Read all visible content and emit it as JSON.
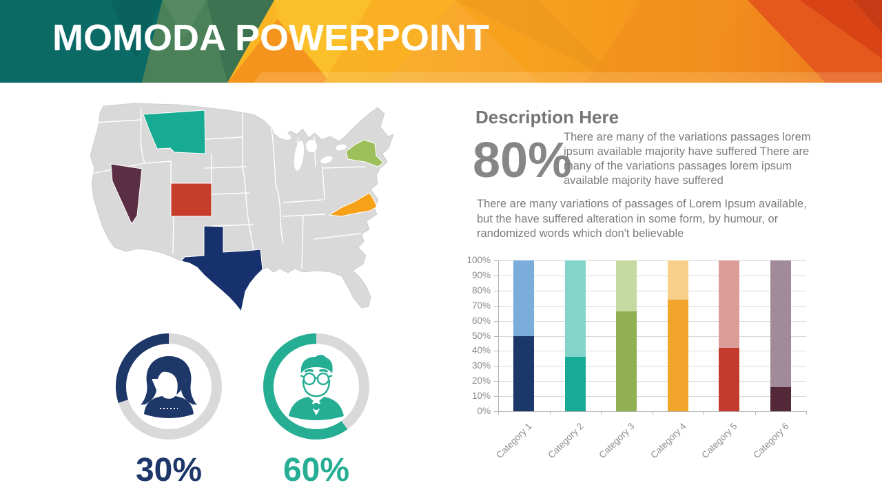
{
  "slide": {
    "title": "MOMODA POWERPOINT",
    "background_color": "#ffffff",
    "header_colors": {
      "teal": "#0b6a66",
      "green": "#4a8159",
      "dark_green": "#3d7350",
      "orange": "#f79d1e",
      "yellow": "#fbc02d",
      "red": "#e55a1c",
      "dark_red": "#c63b16"
    }
  },
  "description": {
    "heading": "Description Here",
    "stat_value": "80%",
    "stat_text": "There are many of the variations passages lorem ipsum available majority have suffered There are many of the variations passages lorem ipsum available majority have suffered",
    "body_text": "There are many variations of passages  of Lorem Ipsum available, but the have suffered alteration in some  form, by humour, or randomized words which  don't believable"
  },
  "donuts": [
    {
      "label": "30%",
      "value": 30,
      "color": "#1e3769",
      "ring_color": "#d9d9d9",
      "icon": "female-avatar"
    },
    {
      "label": "60%",
      "value": 60,
      "color": "#26ae94",
      "ring_color": "#d9d9d9",
      "icon": "male-avatar"
    }
  ],
  "map": {
    "base_color": "#d9d9d9",
    "border_color": "#ffffff",
    "highlighted_states": [
      {
        "name": "Montana",
        "color": "#18ab93"
      },
      {
        "name": "Nevada",
        "color": "#5a2e43"
      },
      {
        "name": "Colorado",
        "color": "#c63d2c"
      },
      {
        "name": "Texas",
        "color": "#16316b"
      },
      {
        "name": "New York",
        "color": "#9dc05b"
      },
      {
        "name": "Virginia",
        "color": "#f7a119"
      }
    ]
  },
  "chart_data": {
    "type": "bar",
    "stacked": true,
    "categories": [
      "Category 1",
      "Category 2",
      "Category 3",
      "Category 4",
      "Category 5",
      "Category 6"
    ],
    "series": [
      {
        "name": "filled",
        "values": [
          50,
          36,
          66,
          74,
          42,
          16
        ],
        "colors": [
          "#1c386b",
          "#17ab97",
          "#90b052",
          "#f2a52b",
          "#c23b2c",
          "#53293a"
        ]
      },
      {
        "name": "remainder",
        "values": [
          50,
          64,
          34,
          26,
          58,
          84
        ],
        "colors": [
          "#7badda",
          "#82d5c8",
          "#c6d9a1",
          "#f8cf8b",
          "#db9d98",
          "#a18a99"
        ]
      }
    ],
    "ylabel_ticks": [
      "0%",
      "10%",
      "20%",
      "30%",
      "40%",
      "50%",
      "60%",
      "70%",
      "80%",
      "90%",
      "100%"
    ],
    "ylim": [
      0,
      100
    ],
    "grid": true,
    "legend": "none"
  }
}
